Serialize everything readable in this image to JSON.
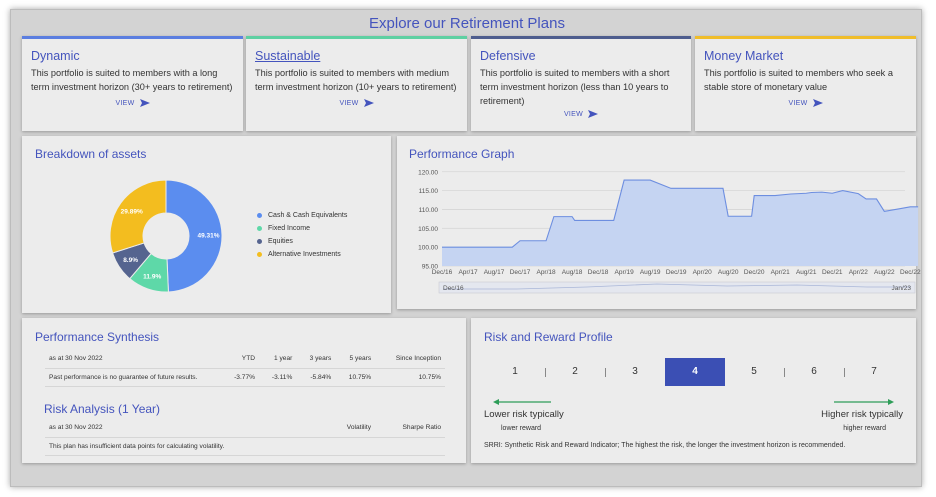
{
  "page": {
    "title": "Explore our Retirement Plans"
  },
  "plans": [
    {
      "name": "Dynamic",
      "desc": "This portfolio is suited to members with a long term investment horizon (30+ years to retirement)",
      "view": "VIEW",
      "accent": "#5b7ee0"
    },
    {
      "name": "Sustainable",
      "desc": "This portfolio is suited to members with medium term investment horizon (10+ years to retirement)",
      "view": "VIEW",
      "accent": "#5ed0a2"
    },
    {
      "name": "Defensive",
      "desc": "This portfolio is suited to members with a short term investment horizon (less than 10 years to retirement)",
      "view": "VIEW",
      "accent": "#4e5d8e"
    },
    {
      "name": "Money Market",
      "desc": "This portfolio is suited to members who seek a stable store of monetary value",
      "view": "VIEW",
      "accent": "#f0bd2a"
    }
  ],
  "breakdown": {
    "title": "Breakdown of assets",
    "slices": [
      {
        "label": "Cash & Cash Equivalents",
        "value": 49.31,
        "text": "49.31%",
        "color": "#5b8def"
      },
      {
        "label": "Fixed Income",
        "value": 11.9,
        "text": "11.9%",
        "color": "#5ed8a8"
      },
      {
        "label": "Equities",
        "value": 8.9,
        "text": "8.9%",
        "color": "#55648f"
      },
      {
        "label": "Alternative Investments",
        "value": 29.89,
        "text": "29.89%",
        "color": "#f3bd1f"
      }
    ]
  },
  "performance": {
    "title": "Performance Graph",
    "navigator_start": "Dec/16",
    "navigator_end": "Jan/23"
  },
  "chart_data": {
    "type": "area",
    "title": "Performance Graph",
    "yticks": [
      "120.00",
      "115.00",
      "110.00",
      "105.00",
      "100.00",
      "95.00"
    ],
    "ylim": [
      95,
      121
    ],
    "xticks": [
      "Dec/16",
      "Apr/17",
      "Aug/17",
      "Dec/17",
      "Apr/18",
      "Aug/18",
      "Dec/18",
      "Apr/19",
      "Aug/19",
      "Dec/19",
      "Apr/20",
      "Aug/20",
      "Dec/20",
      "Apr/21",
      "Aug/21",
      "Dec/21",
      "Apr/22",
      "Aug/22",
      "Dec/22"
    ],
    "x": [
      0,
      1,
      2,
      2.7,
      3,
      3.8,
      4,
      4.3,
      5,
      5.1,
      6,
      6.6,
      7,
      7.6,
      8,
      8.8,
      9.1,
      10,
      10.8,
      11,
      11.9,
      12,
      12.8,
      13.4,
      14,
      14.2,
      14.6,
      15,
      15.4,
      16,
      16.3,
      16.7,
      17,
      17.6,
      18,
      18.3
    ],
    "y": [
      100,
      100,
      100,
      100,
      101.7,
      101.7,
      101.7,
      108.1,
      108.1,
      107.1,
      107.1,
      107.1,
      117.8,
      117.8,
      117.8,
      115.6,
      115.6,
      115.6,
      115.6,
      108.2,
      108.2,
      113.7,
      113.7,
      114.1,
      114.3,
      114.5,
      114.6,
      114.3,
      115,
      114.2,
      112.8,
      112.8,
      109.5,
      110.2,
      110.7,
      110.7
    ]
  },
  "synthesis": {
    "title": "Performance Synthesis",
    "headers": [
      "as at 30 Nov 2022",
      "YTD",
      "1 year",
      "3 years",
      "5 years",
      "Since Inception"
    ],
    "row": [
      "Past performance is no guarantee of future results.",
      "-3.77%",
      "-3.11%",
      "-5.84%",
      "10.75%",
      "10.75%"
    ]
  },
  "risk_analysis": {
    "title": "Risk Analysis (1 Year)",
    "headers": [
      "as at 30 Nov 2022",
      "Volatility",
      "Sharpe Ratio"
    ],
    "note": "This plan has insufficient data points for calculating volatility."
  },
  "risk_reward": {
    "title": "Risk and Reward Profile",
    "levels": [
      "1",
      "2",
      "3",
      "4",
      "5",
      "6",
      "7"
    ],
    "selected_level": 4,
    "lower_label": "Lower risk typically",
    "lower_sub": "lower reward",
    "higher_label": "Higher risk typically",
    "higher_sub": "higher reward",
    "footnote": "SRRI: Synthetic Risk and Reward Indicator; The highest the risk, the longer the investment horizon is recommended."
  }
}
